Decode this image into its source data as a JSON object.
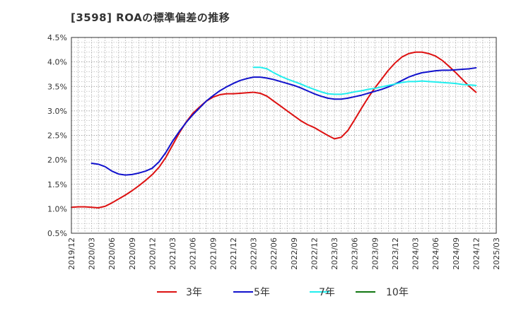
{
  "title": "[3598]  ROAの標準偏差の推移",
  "chart_data": {
    "type": "line",
    "title": "[3598]  ROAの標準偏差の推移",
    "xlabel": "",
    "ylabel": "",
    "y_ticks": [
      "0.5%",
      "1.0%",
      "1.5%",
      "2.0%",
      "2.5%",
      "3.0%",
      "3.5%",
      "4.0%",
      "4.5%"
    ],
    "ylim": [
      0.5,
      4.5
    ],
    "x_ticks": [
      "2019/12",
      "2020/03",
      "2020/06",
      "2020/09",
      "2020/12",
      "2021/03",
      "2021/06",
      "2021/09",
      "2021/12",
      "2022/03",
      "2022/06",
      "2022/09",
      "2022/12",
      "2023/03",
      "2023/06",
      "2023/09",
      "2023/12",
      "2024/03",
      "2024/06",
      "2024/09",
      "2024/12",
      "2025/03"
    ],
    "grid": true,
    "legend_position": "bottom",
    "series": [
      {
        "name": "3年",
        "color": "#dd1111",
        "points": [
          [
            "2019/12",
            1.03
          ],
          [
            "2020/01",
            1.04
          ],
          [
            "2020/02",
            1.04
          ],
          [
            "2020/03",
            1.03
          ],
          [
            "2020/04",
            1.02
          ],
          [
            "2020/05",
            1.05
          ],
          [
            "2020/06",
            1.12
          ],
          [
            "2020/07",
            1.2
          ],
          [
            "2020/08",
            1.28
          ],
          [
            "2020/09",
            1.37
          ],
          [
            "2020/10",
            1.47
          ],
          [
            "2020/11",
            1.58
          ],
          [
            "2020/12",
            1.7
          ],
          [
            "2021/01",
            1.85
          ],
          [
            "2021/02",
            2.05
          ],
          [
            "2021/03",
            2.3
          ],
          [
            "2021/04",
            2.55
          ],
          [
            "2021/05",
            2.77
          ],
          [
            "2021/06",
            2.95
          ],
          [
            "2021/07",
            3.08
          ],
          [
            "2021/08",
            3.2
          ],
          [
            "2021/09",
            3.28
          ],
          [
            "2021/10",
            3.33
          ],
          [
            "2021/11",
            3.35
          ],
          [
            "2021/12",
            3.35
          ],
          [
            "2022/01",
            3.36
          ],
          [
            "2022/02",
            3.37
          ],
          [
            "2022/03",
            3.38
          ],
          [
            "2022/04",
            3.36
          ],
          [
            "2022/05",
            3.3
          ],
          [
            "2022/06",
            3.2
          ],
          [
            "2022/07",
            3.1
          ],
          [
            "2022/08",
            3.0
          ],
          [
            "2022/09",
            2.9
          ],
          [
            "2022/10",
            2.8
          ],
          [
            "2022/11",
            2.72
          ],
          [
            "2022/12",
            2.66
          ],
          [
            "2023/01",
            2.58
          ],
          [
            "2023/02",
            2.5
          ],
          [
            "2023/03",
            2.43
          ],
          [
            "2023/04",
            2.46
          ],
          [
            "2023/05",
            2.6
          ],
          [
            "2023/06",
            2.82
          ],
          [
            "2023/07",
            3.05
          ],
          [
            "2023/08",
            3.27
          ],
          [
            "2023/09",
            3.47
          ],
          [
            "2023/10",
            3.65
          ],
          [
            "2023/11",
            3.83
          ],
          [
            "2023/12",
            3.98
          ],
          [
            "2024/01",
            4.1
          ],
          [
            "2024/02",
            4.17
          ],
          [
            "2024/03",
            4.2
          ],
          [
            "2024/04",
            4.2
          ],
          [
            "2024/05",
            4.17
          ],
          [
            "2024/06",
            4.12
          ],
          [
            "2024/07",
            4.03
          ],
          [
            "2024/08",
            3.91
          ],
          [
            "2024/09",
            3.78
          ],
          [
            "2024/10",
            3.64
          ],
          [
            "2024/11",
            3.5
          ],
          [
            "2024/12",
            3.38
          ]
        ]
      },
      {
        "name": "5年",
        "color": "#1111cc",
        "points": [
          [
            "2020/03",
            1.93
          ],
          [
            "2020/04",
            1.91
          ],
          [
            "2020/05",
            1.86
          ],
          [
            "2020/06",
            1.77
          ],
          [
            "2020/07",
            1.71
          ],
          [
            "2020/08",
            1.69
          ],
          [
            "2020/09",
            1.7
          ],
          [
            "2020/10",
            1.73
          ],
          [
            "2020/11",
            1.77
          ],
          [
            "2020/12",
            1.83
          ],
          [
            "2021/01",
            1.96
          ],
          [
            "2021/02",
            2.15
          ],
          [
            "2021/03",
            2.38
          ],
          [
            "2021/04",
            2.58
          ],
          [
            "2021/05",
            2.76
          ],
          [
            "2021/06",
            2.92
          ],
          [
            "2021/07",
            3.06
          ],
          [
            "2021/08",
            3.2
          ],
          [
            "2021/09",
            3.31
          ],
          [
            "2021/10",
            3.41
          ],
          [
            "2021/11",
            3.49
          ],
          [
            "2021/12",
            3.56
          ],
          [
            "2022/01",
            3.62
          ],
          [
            "2022/02",
            3.66
          ],
          [
            "2022/03",
            3.69
          ],
          [
            "2022/04",
            3.69
          ],
          [
            "2022/05",
            3.67
          ],
          [
            "2022/06",
            3.64
          ],
          [
            "2022/07",
            3.6
          ],
          [
            "2022/08",
            3.56
          ],
          [
            "2022/09",
            3.52
          ],
          [
            "2022/10",
            3.47
          ],
          [
            "2022/11",
            3.41
          ],
          [
            "2022/12",
            3.35
          ],
          [
            "2023/01",
            3.3
          ],
          [
            "2023/02",
            3.26
          ],
          [
            "2023/03",
            3.24
          ],
          [
            "2023/04",
            3.24
          ],
          [
            "2023/05",
            3.26
          ],
          [
            "2023/06",
            3.29
          ],
          [
            "2023/07",
            3.32
          ],
          [
            "2023/08",
            3.36
          ],
          [
            "2023/09",
            3.4
          ],
          [
            "2023/10",
            3.44
          ],
          [
            "2023/11",
            3.49
          ],
          [
            "2023/12",
            3.55
          ],
          [
            "2024/01",
            3.62
          ],
          [
            "2024/02",
            3.69
          ],
          [
            "2024/03",
            3.74
          ],
          [
            "2024/04",
            3.78
          ],
          [
            "2024/05",
            3.8
          ],
          [
            "2024/06",
            3.82
          ],
          [
            "2024/07",
            3.83
          ],
          [
            "2024/08",
            3.83
          ],
          [
            "2024/09",
            3.84
          ],
          [
            "2024/10",
            3.85
          ],
          [
            "2024/11",
            3.86
          ],
          [
            "2024/12",
            3.88
          ]
        ]
      },
      {
        "name": "7年",
        "color": "#22eeee",
        "points": [
          [
            "2022/03",
            3.89
          ],
          [
            "2022/04",
            3.89
          ],
          [
            "2022/05",
            3.86
          ],
          [
            "2022/06",
            3.78
          ],
          [
            "2022/07",
            3.71
          ],
          [
            "2022/08",
            3.65
          ],
          [
            "2022/09",
            3.6
          ],
          [
            "2022/10",
            3.55
          ],
          [
            "2022/11",
            3.49
          ],
          [
            "2022/12",
            3.44
          ],
          [
            "2023/01",
            3.39
          ],
          [
            "2023/02",
            3.35
          ],
          [
            "2023/03",
            3.34
          ],
          [
            "2023/04",
            3.34
          ],
          [
            "2023/05",
            3.36
          ],
          [
            "2023/06",
            3.39
          ],
          [
            "2023/07",
            3.41
          ],
          [
            "2023/08",
            3.44
          ],
          [
            "2023/09",
            3.46
          ],
          [
            "2023/10",
            3.49
          ],
          [
            "2023/11",
            3.52
          ],
          [
            "2023/12",
            3.55
          ],
          [
            "2024/01",
            3.58
          ],
          [
            "2024/02",
            3.6
          ],
          [
            "2024/03",
            3.6
          ],
          [
            "2024/04",
            3.61
          ],
          [
            "2024/05",
            3.6
          ],
          [
            "2024/06",
            3.59
          ],
          [
            "2024/07",
            3.58
          ],
          [
            "2024/08",
            3.57
          ],
          [
            "2024/09",
            3.56
          ],
          [
            "2024/10",
            3.54
          ],
          [
            "2024/11",
            3.53
          ],
          [
            "2024/12",
            3.52
          ]
        ]
      },
      {
        "name": "10年",
        "color": "#117711",
        "points": []
      }
    ]
  }
}
